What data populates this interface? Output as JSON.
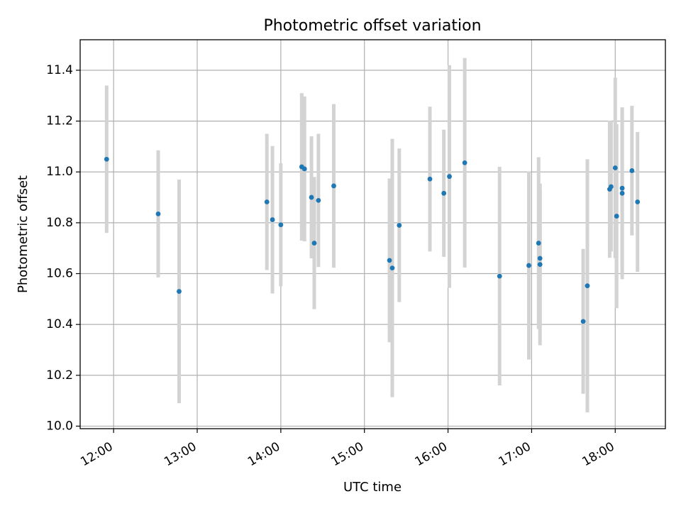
{
  "chart_data": {
    "type": "scatter",
    "title": "Photometric offset variation",
    "xlabel": "UTC time",
    "ylabel": "Photometric offset",
    "grid": true,
    "xlim": [
      "11:36",
      "18:36"
    ],
    "ylim": [
      9.99,
      11.52
    ],
    "x_ticks": [
      "12:00",
      "13:00",
      "14:00",
      "15:00",
      "16:00",
      "17:00",
      "18:00"
    ],
    "y_ticks": [
      "10.0",
      "10.2",
      "10.4",
      "10.6",
      "10.8",
      "11.0",
      "11.2",
      "11.4"
    ],
    "colors": {
      "point": "#1f77b4",
      "errorbar": "#d3d3d3",
      "grid": "#b0b0b0"
    },
    "points": [
      {
        "x": "11:55",
        "y": 11.05,
        "err": 0.29
      },
      {
        "x": "12:32",
        "y": 10.835,
        "err": 0.25
      },
      {
        "x": "12:47",
        "y": 10.53,
        "err": 0.44
      },
      {
        "x": "13:50",
        "y": 10.882,
        "err": 0.268
      },
      {
        "x": "13:54",
        "y": 10.812,
        "err": 0.29
      },
      {
        "x": "14:00",
        "y": 10.792,
        "err": 0.242
      },
      {
        "x": "14:15",
        "y": 11.02,
        "err": 0.29
      },
      {
        "x": "14:17",
        "y": 11.012,
        "err": 0.285
      },
      {
        "x": "14:22",
        "y": 10.9,
        "err": 0.24
      },
      {
        "x": "14:24",
        "y": 10.72,
        "err": 0.26
      },
      {
        "x": "14:27",
        "y": 10.888,
        "err": 0.262
      },
      {
        "x": "14:38",
        "y": 10.945,
        "err": 0.322
      },
      {
        "x": "15:18",
        "y": 10.652,
        "err": 0.322
      },
      {
        "x": "15:20",
        "y": 10.622,
        "err": 0.508
      },
      {
        "x": "15:25",
        "y": 10.79,
        "err": 0.302
      },
      {
        "x": "15:47",
        "y": 10.972,
        "err": 0.285
      },
      {
        "x": "15:57",
        "y": 10.916,
        "err": 0.25
      },
      {
        "x": "16:01",
        "y": 10.982,
        "err": 0.438
      },
      {
        "x": "16:12",
        "y": 11.036,
        "err": 0.412
      },
      {
        "x": "16:37",
        "y": 10.59,
        "err": 0.43
      },
      {
        "x": "16:58",
        "y": 10.632,
        "err": 0.37
      },
      {
        "x": "17:05",
        "y": 10.72,
        "err": 0.338
      },
      {
        "x": "17:06",
        "y": 10.66,
        "err": 0.27
      },
      {
        "x": "17:06",
        "y": 10.636,
        "err": 0.318
      },
      {
        "x": "17:37",
        "y": 10.412,
        "err": 0.285
      },
      {
        "x": "17:40",
        "y": 10.552,
        "err": 0.498
      },
      {
        "x": "17:56",
        "y": 10.932,
        "err": 0.27
      },
      {
        "x": "17:57",
        "y": 10.942,
        "err": 0.255
      },
      {
        "x": "18:00",
        "y": 11.016,
        "err": 0.355
      },
      {
        "x": "18:01",
        "y": 10.826,
        "err": 0.362
      },
      {
        "x": "18:05",
        "y": 10.936,
        "err": 0.315
      },
      {
        "x": "18:05",
        "y": 10.916,
        "err": 0.338
      },
      {
        "x": "18:12",
        "y": 11.005,
        "err": 0.255
      },
      {
        "x": "18:16",
        "y": 10.882,
        "err": 0.275
      }
    ]
  }
}
